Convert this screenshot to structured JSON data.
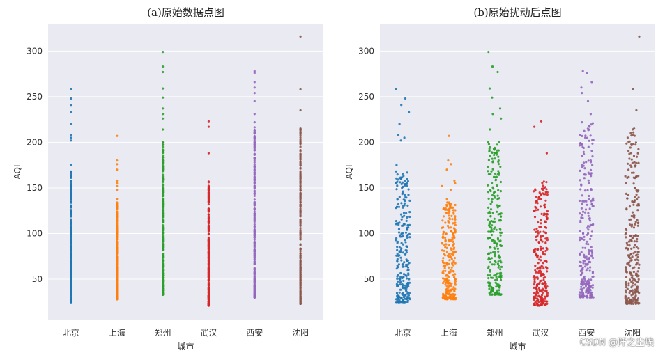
{
  "watermark": "CSDN @阡之尘埃",
  "chart_data": [
    {
      "type": "scatter",
      "title": "(a)原始数据点图",
      "xlabel": "城市",
      "ylabel": "AQI",
      "categories": [
        "北京",
        "上海",
        "郑州",
        "武汉",
        "西安",
        "沈阳"
      ],
      "ylim": [
        5,
        330
      ],
      "yticks": [
        50,
        100,
        150,
        200,
        250,
        300
      ],
      "grid": true,
      "jitter": false,
      "series": [
        {
          "category": "北京",
          "color": "#1f77b4",
          "min": 24,
          "max": 168,
          "outliers": [
            175,
            202,
            205,
            208,
            220,
            233,
            241,
            248,
            258
          ]
        },
        {
          "category": "上海",
          "color": "#ff7f0e",
          "min": 28,
          "max": 134,
          "outliers": [
            138,
            148,
            152,
            155,
            158,
            170,
            176,
            180,
            207
          ]
        },
        {
          "category": "郑州",
          "color": "#2ca02c",
          "min": 33,
          "max": 200,
          "outliers": [
            214,
            226,
            231,
            237,
            249,
            259,
            277,
            283,
            299
          ]
        },
        {
          "category": "武汉",
          "color": "#d62728",
          "min": 21,
          "max": 157,
          "outliers": [
            188,
            217,
            223
          ]
        },
        {
          "category": "西安",
          "color": "#9467bd",
          "min": 30,
          "max": 222,
          "outliers": [
            231,
            245,
            254,
            260,
            266,
            276,
            278
          ]
        },
        {
          "category": "沈阳",
          "color": "#8c564b",
          "min": 23,
          "max": 215,
          "outliers": [
            235,
            258,
            316
          ]
        }
      ]
    },
    {
      "type": "scatter",
      "title": "(b)原始扰动后点图",
      "xlabel": "城市",
      "ylabel": "AQI",
      "categories": [
        "北京",
        "上海",
        "郑州",
        "武汉",
        "西安",
        "沈阳"
      ],
      "ylim": [
        5,
        330
      ],
      "yticks": [
        50,
        100,
        150,
        200,
        250,
        300
      ],
      "grid": true,
      "jitter": true,
      "series": [
        {
          "category": "北京",
          "color": "#1f77b4",
          "min": 24,
          "max": 168,
          "outliers": [
            175,
            202,
            205,
            208,
            220,
            233,
            241,
            248,
            258
          ]
        },
        {
          "category": "上海",
          "color": "#ff7f0e",
          "min": 28,
          "max": 134,
          "outliers": [
            138,
            148,
            152,
            155,
            158,
            170,
            176,
            180,
            207
          ]
        },
        {
          "category": "郑州",
          "color": "#2ca02c",
          "min": 33,
          "max": 200,
          "outliers": [
            214,
            226,
            231,
            237,
            249,
            259,
            277,
            283,
            299
          ]
        },
        {
          "category": "武汉",
          "color": "#d62728",
          "min": 21,
          "max": 157,
          "outliers": [
            188,
            217,
            223
          ]
        },
        {
          "category": "西安",
          "color": "#9467bd",
          "min": 30,
          "max": 222,
          "outliers": [
            231,
            245,
            254,
            260,
            266,
            276,
            278
          ]
        },
        {
          "category": "沈阳",
          "color": "#8c564b",
          "min": 23,
          "max": 215,
          "outliers": [
            235,
            258,
            316
          ]
        }
      ]
    }
  ]
}
